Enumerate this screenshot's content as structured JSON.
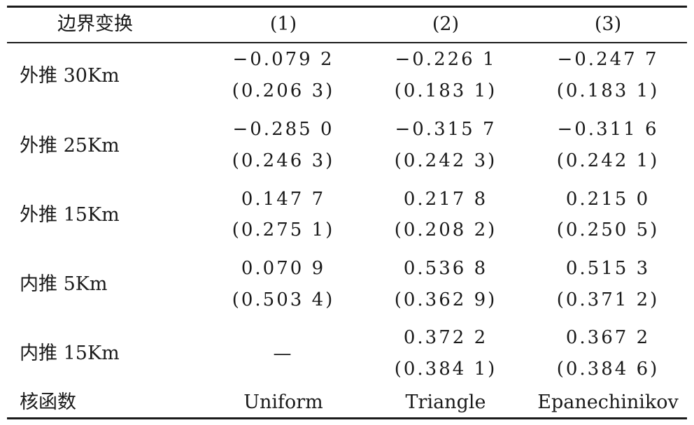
{
  "header": {
    "col0": "边界变换",
    "col1": "(1)",
    "col2": "(2)",
    "col3": "(3)"
  },
  "rows": [
    {
      "label": "外推 30Km",
      "c1": {
        "coef": "−0.079 2",
        "se": "(0.206 3)"
      },
      "c2": {
        "coef": "−0.226 1",
        "se": "(0.183 1)"
      },
      "c3": {
        "coef": "−0.247 7",
        "se": "(0.183 1)"
      }
    },
    {
      "label": "外推 25Km",
      "c1": {
        "coef": "−0.285 0",
        "se": "(0.246 3)"
      },
      "c2": {
        "coef": "−0.315 7",
        "se": "(0.242 3)"
      },
      "c3": {
        "coef": "−0.311 6",
        "se": "(0.242 1)"
      }
    },
    {
      "label": "外推 15Km",
      "c1": {
        "coef": "0.147 7",
        "se": "(0.275 1)"
      },
      "c2": {
        "coef": "0.217 8",
        "se": "(0.208 2)"
      },
      "c3": {
        "coef": "0.215 0",
        "se": "(0.250 5)"
      }
    },
    {
      "label": "内推 5Km",
      "c1": {
        "coef": "0.070 9",
        "se": "(0.503 4)"
      },
      "c2": {
        "coef": "0.536 8",
        "se": "(0.362 9)"
      },
      "c3": {
        "coef": "0.515 3",
        "se": "(0.371 2)"
      }
    },
    {
      "label": "内推 15Km",
      "c1": {
        "coef": "—",
        "se": ""
      },
      "c2": {
        "coef": "0.372 2",
        "se": "(0.384 1)"
      },
      "c3": {
        "coef": "0.367 2",
        "se": "(0.384 6)"
      }
    }
  ],
  "kernel": {
    "label": "核函数",
    "c1": "Uniform",
    "c2": "Triangle",
    "c3": "Epanechinikov"
  }
}
